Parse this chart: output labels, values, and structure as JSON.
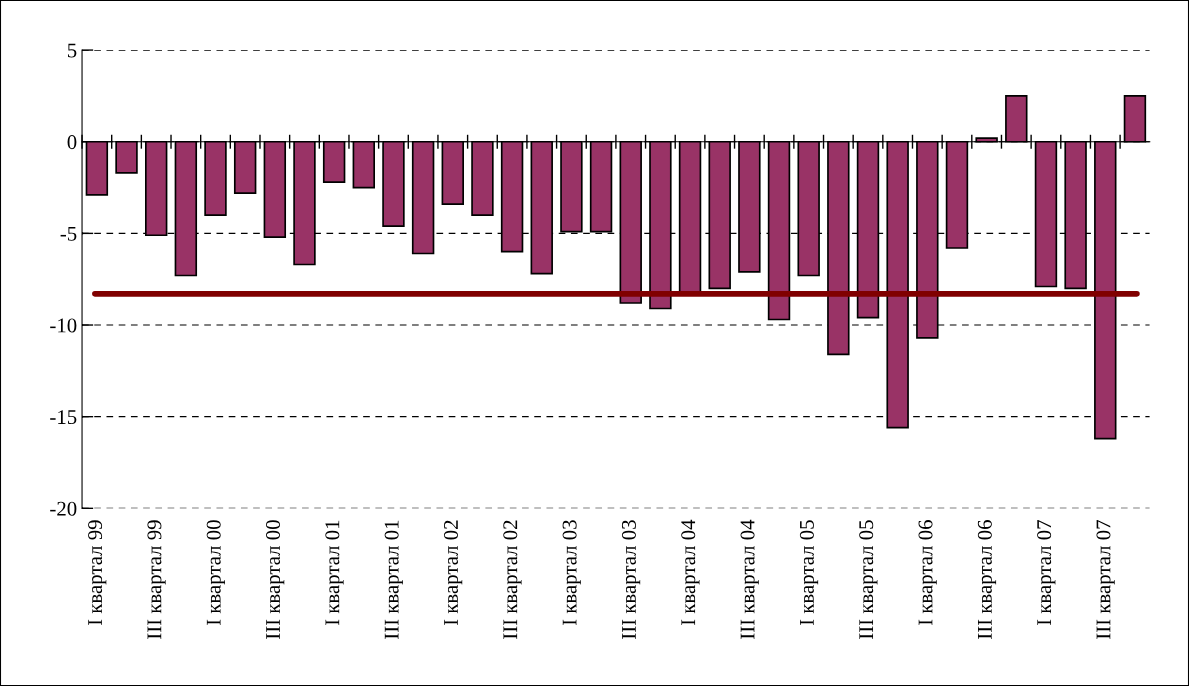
{
  "chart_data": {
    "type": "bar",
    "categories": [
      "I квартал 99",
      null,
      "III квартал 99",
      null,
      "I квартал 00",
      null,
      "III квартал 00",
      null,
      "I квартал 01",
      null,
      "III квартал 01",
      null,
      "I квартал 02",
      null,
      "III квартал 02",
      null,
      "I квартал 03",
      null,
      "III квартал 03",
      null,
      "I квартал 04",
      null,
      "III квартал 04",
      null,
      "I квартал 05",
      null,
      "III квартал 05",
      null,
      "I квартал 06",
      null,
      "III квартал 06",
      null,
      "I квартал 07",
      null,
      "III квартал 07",
      null
    ],
    "values": [
      -2.9,
      -1.7,
      -5.1,
      -7.3,
      -4.0,
      -2.8,
      -5.2,
      -6.7,
      -2.2,
      -2.5,
      -4.6,
      -6.1,
      -3.4,
      -4.0,
      -6.0,
      -7.2,
      -4.9,
      -4.9,
      -8.8,
      -9.1,
      -8.3,
      -8.0,
      -7.1,
      -9.7,
      -7.3,
      -11.6,
      -9.6,
      -15.6,
      -10.7,
      -5.8,
      0.2,
      2.5,
      -7.9,
      -8.0,
      -16.2,
      2.5
    ],
    "color": "#993366",
    "ylim": [
      -20,
      5
    ],
    "yticks": [
      -20,
      -15,
      -10,
      -5,
      0,
      5
    ],
    "grid": "y",
    "ref_lines": [
      {
        "axis": "y",
        "value": -8.3,
        "color": "#800000",
        "line_style": "solid"
      }
    ]
  }
}
